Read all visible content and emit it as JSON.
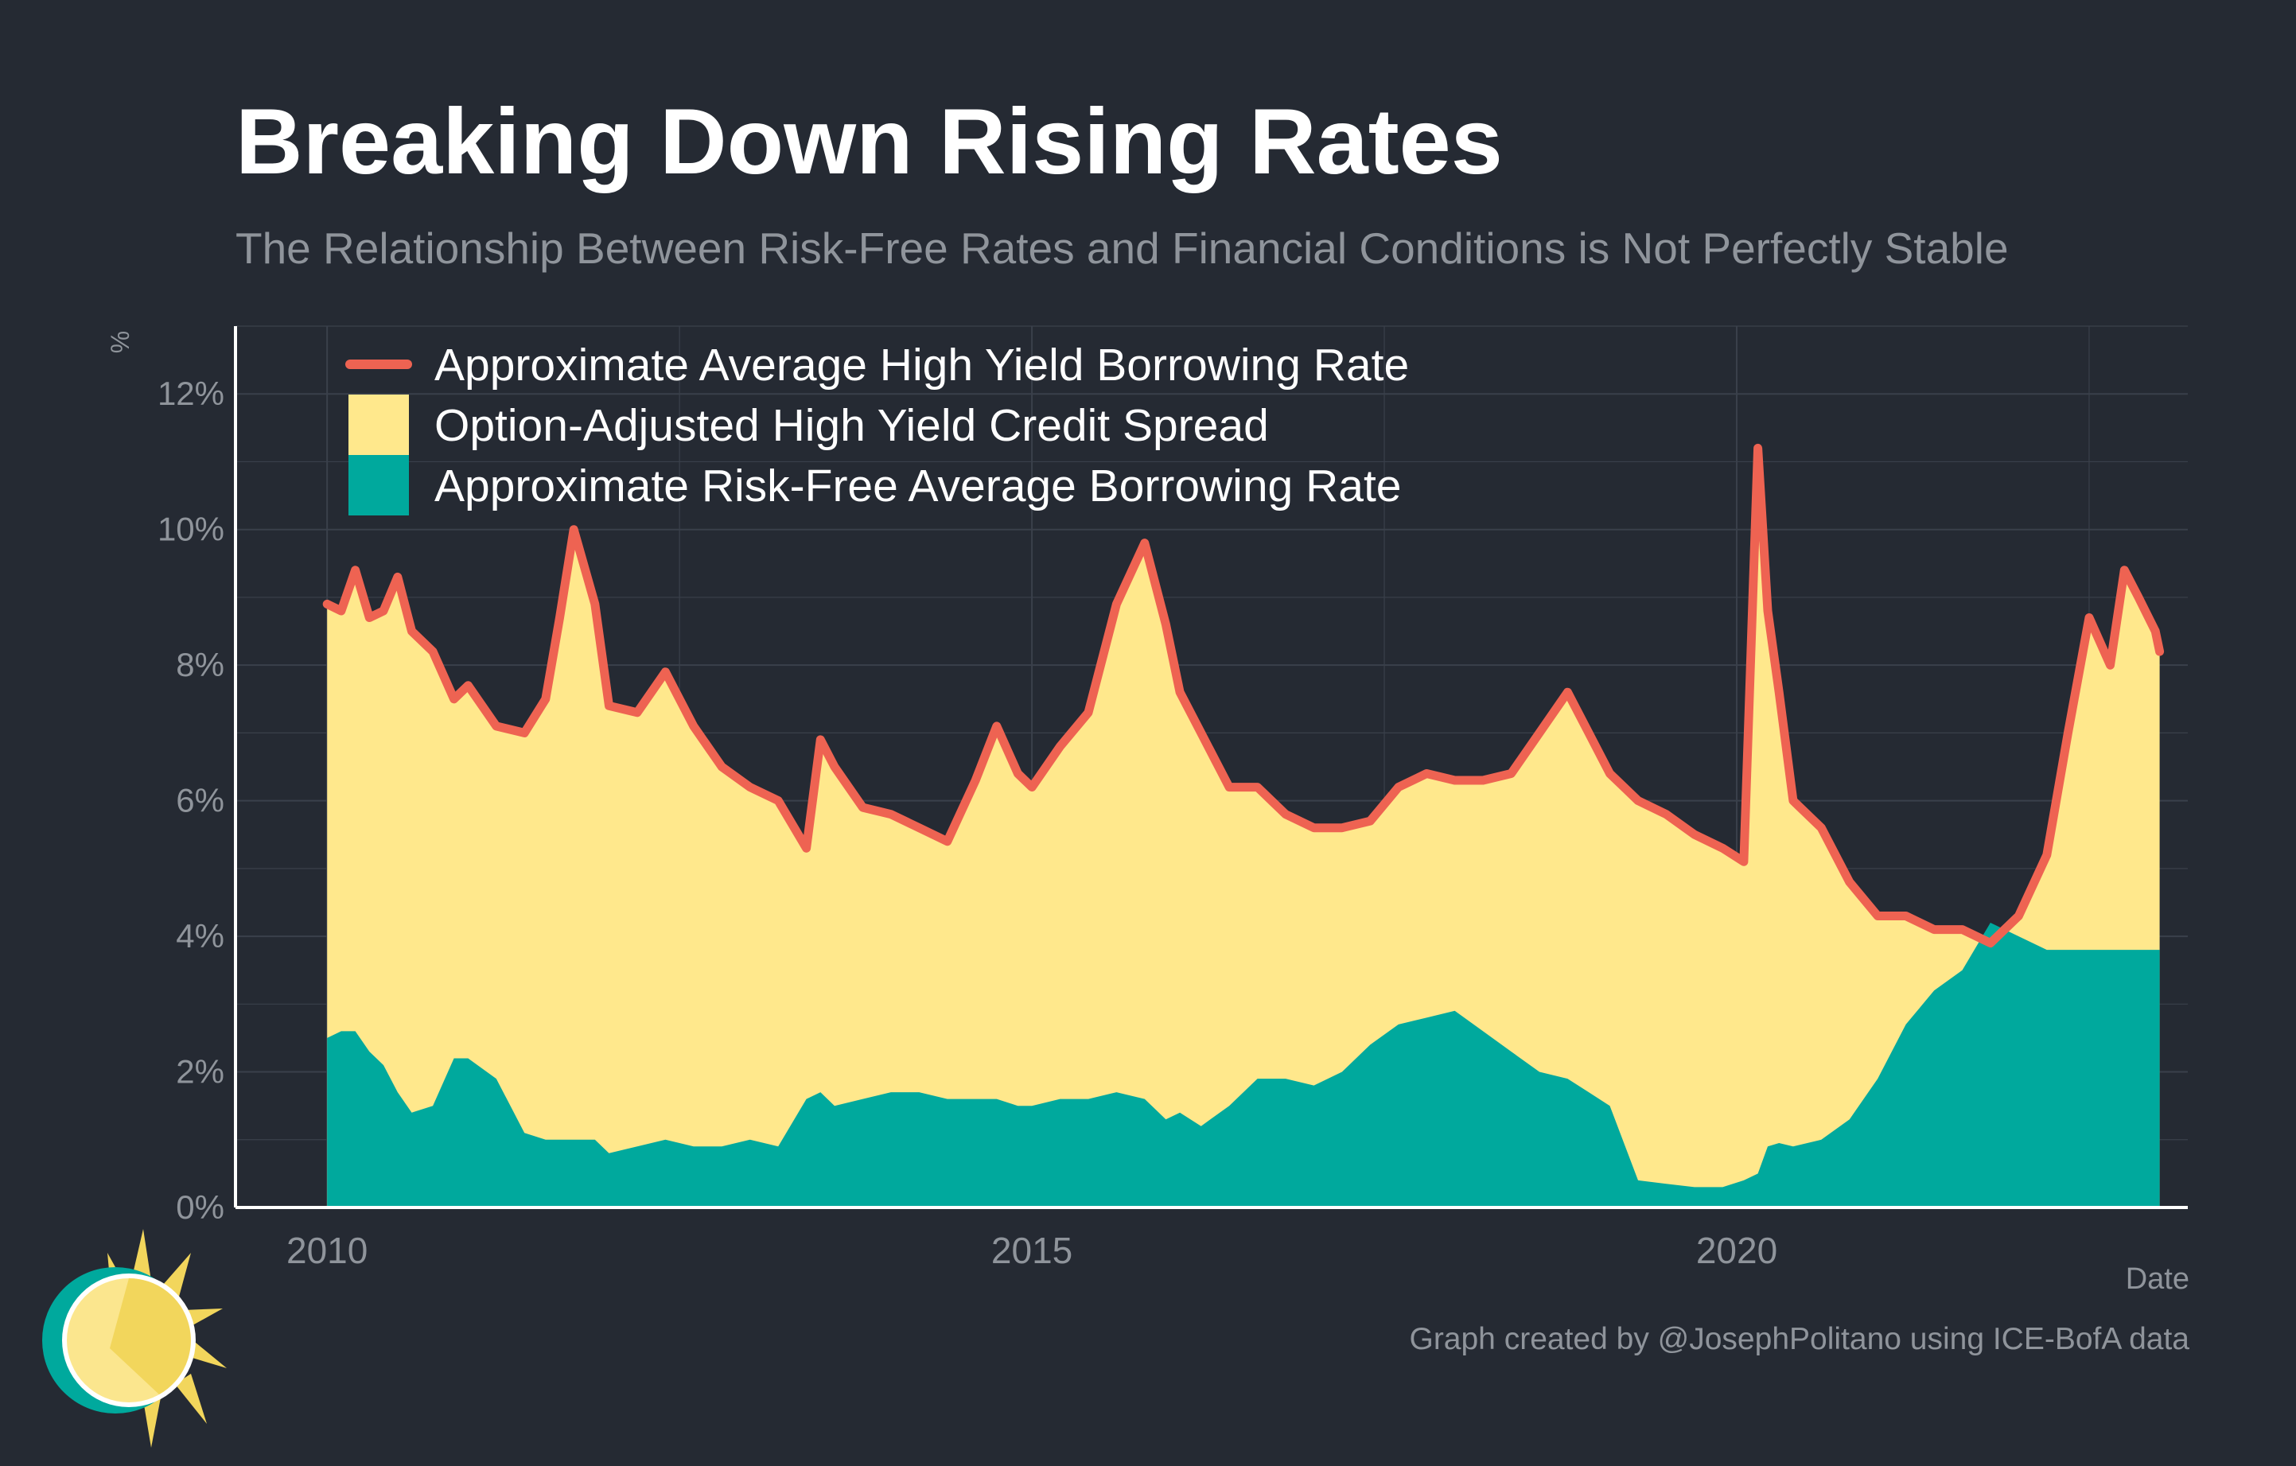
{
  "title": "Breaking Down Rising Rates",
  "subtitle": "The Relationship Between Risk-Free Rates and Financial Conditions is Not Perfectly Stable",
  "caption": "Graph created by @JosephPolitano using ICE-BofA data",
  "colors": {
    "background": "#252a33",
    "grid": "#3a404b",
    "axis_text": "#8f949b",
    "high_yield_rate": "#ee6352",
    "credit_spread": "#ffe88c",
    "risk_free_rate": "#00a99d"
  },
  "chart_data": {
    "type": "area",
    "ylabel": "%",
    "xlabel": "Date",
    "ylim": [
      0,
      13
    ],
    "xlim": [
      2009.35,
      2023.2
    ],
    "yticks": [
      0,
      2,
      4,
      6,
      8,
      10,
      12
    ],
    "ytick_labels": [
      "0%",
      "2%",
      "4%",
      "6%",
      "8%",
      "10%",
      "12%"
    ],
    "xticks": [
      2010,
      2015,
      2020
    ],
    "xtick_labels": [
      "2010",
      "2015",
      "2020"
    ],
    "grid": true,
    "legend_position": "top-left",
    "legend": [
      {
        "label": "Approximate Average High Yield Borrowing Rate",
        "kind": "line",
        "color": "#ee6352"
      },
      {
        "label": "Option-Adjusted High Yield Credit Spread",
        "kind": "fill",
        "color": "#ffe88c"
      },
      {
        "label": "Approximate Risk-Free Average Borrowing Rate",
        "kind": "fill",
        "color": "#00a99d"
      }
    ],
    "x": [
      2010.0,
      2010.1,
      2010.2,
      2010.3,
      2010.4,
      2010.5,
      2010.6,
      2010.75,
      2010.9,
      2011.0,
      2011.2,
      2011.4,
      2011.55,
      2011.65,
      2011.75,
      2011.9,
      2012.0,
      2012.2,
      2012.4,
      2012.6,
      2012.8,
      2013.0,
      2013.2,
      2013.4,
      2013.5,
      2013.6,
      2013.8,
      2014.0,
      2014.2,
      2014.4,
      2014.6,
      2014.75,
      2014.9,
      2015.0,
      2015.2,
      2015.4,
      2015.6,
      2015.8,
      2015.95,
      2016.05,
      2016.2,
      2016.4,
      2016.6,
      2016.8,
      2017.0,
      2017.2,
      2017.4,
      2017.6,
      2017.8,
      2018.0,
      2018.2,
      2018.4,
      2018.6,
      2018.8,
      2018.95,
      2019.1,
      2019.3,
      2019.5,
      2019.7,
      2019.9,
      2020.05,
      2020.15,
      2020.22,
      2020.3,
      2020.4,
      2020.6,
      2020.8,
      2021.0,
      2021.2,
      2021.4,
      2021.6,
      2021.8,
      2022.0,
      2022.2,
      2022.35,
      2022.5,
      2022.65,
      2022.75,
      2022.85,
      2022.97,
      2023.0
    ],
    "series": [
      {
        "name": "Approximate Average High Yield Borrowing Rate",
        "values": [
          8.9,
          8.8,
          9.4,
          8.7,
          8.8,
          9.3,
          8.5,
          8.2,
          7.5,
          7.7,
          7.1,
          7.0,
          7.5,
          8.7,
          10.0,
          8.9,
          7.4,
          7.3,
          7.9,
          7.1,
          6.5,
          6.2,
          6.0,
          5.3,
          6.9,
          6.5,
          5.9,
          5.8,
          5.6,
          5.4,
          6.3,
          7.1,
          6.4,
          6.2,
          6.8,
          7.3,
          8.9,
          9.8,
          8.6,
          7.6,
          7.0,
          6.2,
          6.2,
          5.8,
          5.6,
          5.6,
          5.7,
          6.2,
          6.4,
          6.3,
          6.3,
          6.4,
          7.0,
          7.6,
          7.0,
          6.4,
          6.0,
          5.8,
          5.5,
          5.3,
          5.1,
          11.2,
          8.8,
          7.6,
          6.0,
          5.6,
          4.8,
          4.3,
          4.3,
          4.1,
          4.1,
          3.9,
          4.3,
          5.2,
          7.0,
          8.7,
          8.0,
          9.4,
          9.0,
          8.5,
          8.2
        ]
      },
      {
        "name": "Approximate Risk-Free Average Borrowing Rate",
        "values": [
          2.5,
          2.6,
          2.6,
          2.3,
          2.1,
          1.7,
          1.4,
          1.5,
          2.2,
          2.2,
          1.9,
          1.1,
          1.0,
          1.0,
          1.0,
          1.0,
          0.8,
          0.9,
          1.0,
          0.9,
          0.9,
          1.0,
          0.9,
          1.6,
          1.7,
          1.5,
          1.6,
          1.7,
          1.7,
          1.6,
          1.6,
          1.6,
          1.5,
          1.5,
          1.6,
          1.6,
          1.7,
          1.6,
          1.3,
          1.4,
          1.2,
          1.5,
          1.9,
          1.9,
          1.8,
          2.0,
          2.4,
          2.7,
          2.8,
          2.9,
          2.6,
          2.3,
          2.0,
          1.9,
          1.7,
          1.5,
          0.4,
          0.35,
          0.3,
          0.3,
          0.4,
          0.5,
          0.9,
          0.95,
          0.9,
          1.0,
          1.3,
          1.9,
          2.7,
          3.2,
          3.5,
          4.2,
          4.0,
          3.8,
          3.8,
          3.8,
          3.8,
          3.8,
          3.8,
          3.8,
          3.8
        ]
      }
    ]
  }
}
